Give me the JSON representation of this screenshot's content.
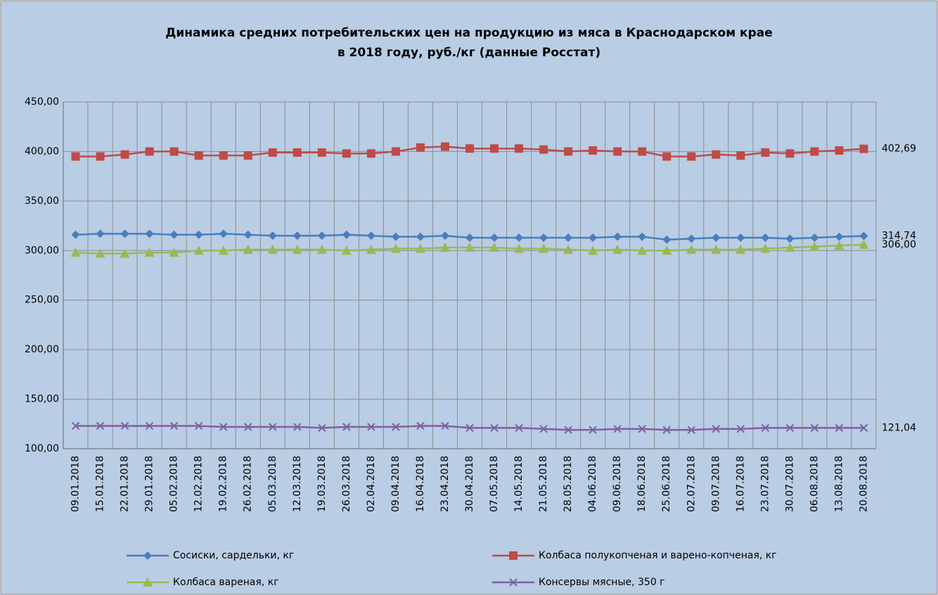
{
  "chart_data": {
    "type": "line",
    "title": [
      "Динамика средних потребительских цен на продукцию из мяса в Краснодарском крае",
      "в 2018 году, руб./кг (данные Росстат)"
    ],
    "categories": [
      "09.01.2018",
      "15.01.2018",
      "22.01.2018",
      "29.01.2018",
      "05.02.2018",
      "12.02.2018",
      "19.02.2018",
      "26.02.2018",
      "05.03.2018",
      "12.03.2018",
      "19.03.2018",
      "26.03.2018",
      "02.04.2018",
      "09.04.2018",
      "16.04.2018",
      "23.04.2018",
      "30.04.2018",
      "07.05.2018",
      "14.05.2018",
      "21.05.2018",
      "28.05.2018",
      "04.06.2018",
      "09.06.2018",
      "18.06.2018",
      "25.06.2018",
      "02.07.2018",
      "09.07.2018",
      "16.07.2018",
      "23.07.2018",
      "30.07.2018",
      "06.08.2018",
      "13.08.2018",
      "20.08.2018"
    ],
    "series": [
      {
        "name": "Сосиски, сардельки, кг",
        "color": "#4a7ebb",
        "marker": "diamond",
        "values": [
          316,
          317,
          317,
          317,
          316,
          316,
          317,
          316,
          315,
          315,
          315,
          316,
          315,
          314,
          314,
          315,
          313,
          313,
          313,
          313,
          313,
          313,
          314,
          314,
          311,
          312,
          313,
          313,
          313,
          312,
          313,
          314,
          314.74
        ],
        "value_labels": [
          null,
          null,
          null,
          null,
          null,
          null,
          null,
          null,
          null,
          null,
          null,
          null,
          null,
          null,
          null,
          null,
          null,
          null,
          null,
          null,
          null,
          null,
          null,
          null,
          null,
          null,
          null,
          null,
          null,
          null,
          null,
          null,
          "314,74"
        ]
      },
      {
        "name": "Колбаса полукопченая и варено-копченая, кг",
        "color": "#be4b48",
        "marker": "square",
        "values": [
          395,
          395,
          397,
          400,
          400,
          396,
          396,
          396,
          399,
          399,
          399,
          398,
          398,
          400,
          404,
          405,
          403,
          403,
          403,
          402,
          400,
          401,
          400,
          400,
          395,
          395,
          397,
          396,
          399,
          398,
          400,
          401,
          402.69
        ],
        "value_labels": [
          null,
          null,
          null,
          null,
          null,
          null,
          null,
          null,
          null,
          null,
          null,
          null,
          null,
          null,
          null,
          null,
          null,
          null,
          null,
          null,
          null,
          null,
          null,
          null,
          null,
          null,
          null,
          null,
          null,
          null,
          null,
          null,
          "402,69"
        ]
      },
      {
        "name": "Колбаса вареная, кг",
        "color": "#98b954",
        "marker": "triangle",
        "values": [
          298,
          297,
          297,
          298,
          298,
          300,
          300,
          301,
          301,
          301,
          301,
          300,
          301,
          302,
          302,
          303,
          303,
          303,
          302,
          302,
          301,
          300,
          301,
          300,
          300,
          301,
          301,
          301,
          302,
          303,
          304,
          305,
          306.0
        ],
        "value_labels": [
          null,
          null,
          null,
          null,
          null,
          null,
          null,
          null,
          null,
          null,
          null,
          null,
          null,
          null,
          null,
          null,
          null,
          null,
          null,
          null,
          null,
          null,
          null,
          null,
          null,
          null,
          null,
          null,
          null,
          null,
          null,
          null,
          "306,00"
        ]
      },
      {
        "name": "Консервы мясные, 350 г",
        "color": "#7d60a0",
        "marker": "x",
        "values": [
          123,
          123,
          123,
          123,
          123,
          123,
          122,
          122,
          122,
          122,
          121,
          122,
          122,
          122,
          123,
          123,
          121,
          121,
          121,
          120,
          119,
          119,
          120,
          120,
          119,
          119,
          120,
          120,
          121,
          121,
          121,
          121,
          121.04
        ],
        "value_labels": [
          null,
          null,
          null,
          null,
          null,
          null,
          null,
          null,
          null,
          null,
          null,
          null,
          null,
          null,
          null,
          null,
          null,
          null,
          null,
          null,
          null,
          null,
          null,
          null,
          null,
          null,
          null,
          null,
          null,
          null,
          null,
          null,
          "121,04"
        ]
      }
    ],
    "ylim": [
      100,
      450
    ],
    "yticks": [
      {
        "value": 100,
        "label": "100,00"
      },
      {
        "value": 150,
        "label": "150,00"
      },
      {
        "value": 200,
        "label": "200,00"
      },
      {
        "value": 250,
        "label": "250,00"
      },
      {
        "value": 300,
        "label": "300,00"
      },
      {
        "value": 350,
        "label": "350,00"
      },
      {
        "value": 400,
        "label": "400,00"
      },
      {
        "value": 450,
        "label": "450,00"
      }
    ],
    "grid": true,
    "legend": "bottom"
  }
}
